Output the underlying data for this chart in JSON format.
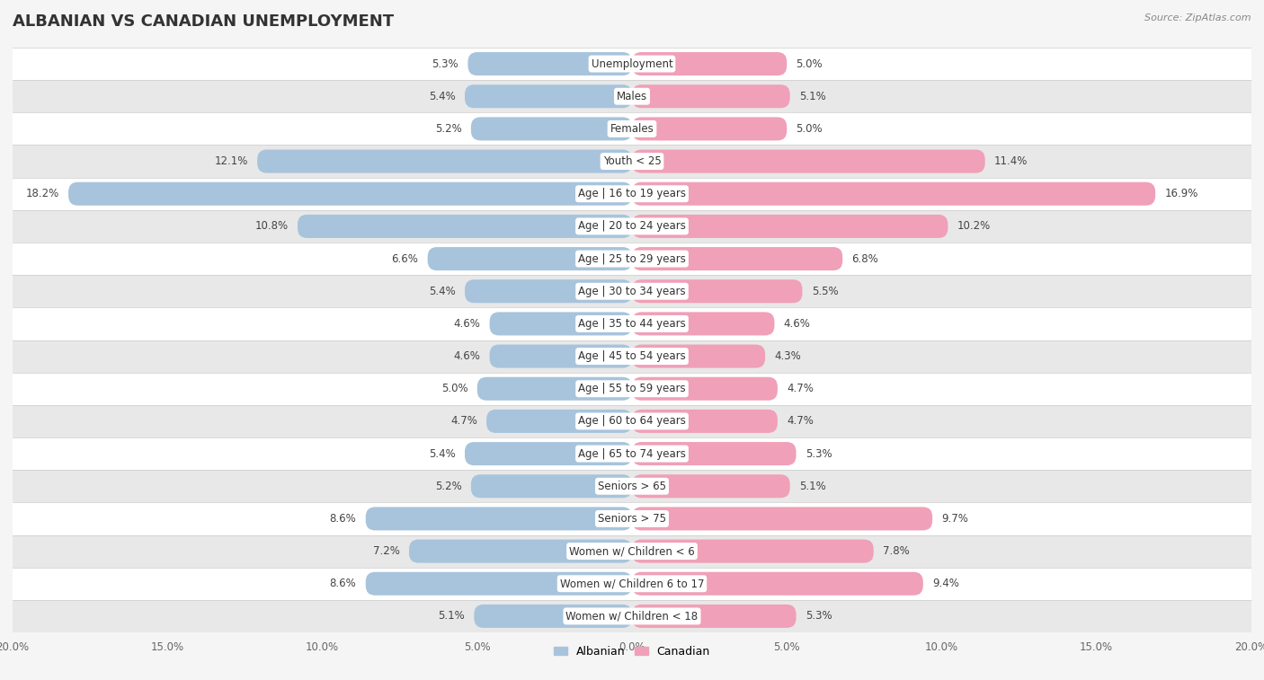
{
  "title": "ALBANIAN VS CANADIAN UNEMPLOYMENT",
  "source": "Source: ZipAtlas.com",
  "categories": [
    "Unemployment",
    "Males",
    "Females",
    "Youth < 25",
    "Age | 16 to 19 years",
    "Age | 20 to 24 years",
    "Age | 25 to 29 years",
    "Age | 30 to 34 years",
    "Age | 35 to 44 years",
    "Age | 45 to 54 years",
    "Age | 55 to 59 years",
    "Age | 60 to 64 years",
    "Age | 65 to 74 years",
    "Seniors > 65",
    "Seniors > 75",
    "Women w/ Children < 6",
    "Women w/ Children 6 to 17",
    "Women w/ Children < 18"
  ],
  "albanian": [
    5.3,
    5.4,
    5.2,
    12.1,
    18.2,
    10.8,
    6.6,
    5.4,
    4.6,
    4.6,
    5.0,
    4.7,
    5.4,
    5.2,
    8.6,
    7.2,
    8.6,
    5.1
  ],
  "canadian": [
    5.0,
    5.1,
    5.0,
    11.4,
    16.9,
    10.2,
    6.8,
    5.5,
    4.6,
    4.3,
    4.7,
    4.7,
    5.3,
    5.1,
    9.7,
    7.8,
    9.4,
    5.3
  ],
  "albanian_color": "#a8c4dc",
  "canadian_color": "#f0a0b8",
  "albanian_label": "Albanian",
  "canadian_label": "Canadian",
  "bg_color": "#f5f5f5",
  "row_color_light": "#ffffff",
  "row_color_dark": "#e8e8e8",
  "xlim": 20.0,
  "bar_height": 0.72,
  "title_fontsize": 13,
  "label_fontsize": 8.5,
  "tick_fontsize": 8.5,
  "value_fontsize": 8.5
}
